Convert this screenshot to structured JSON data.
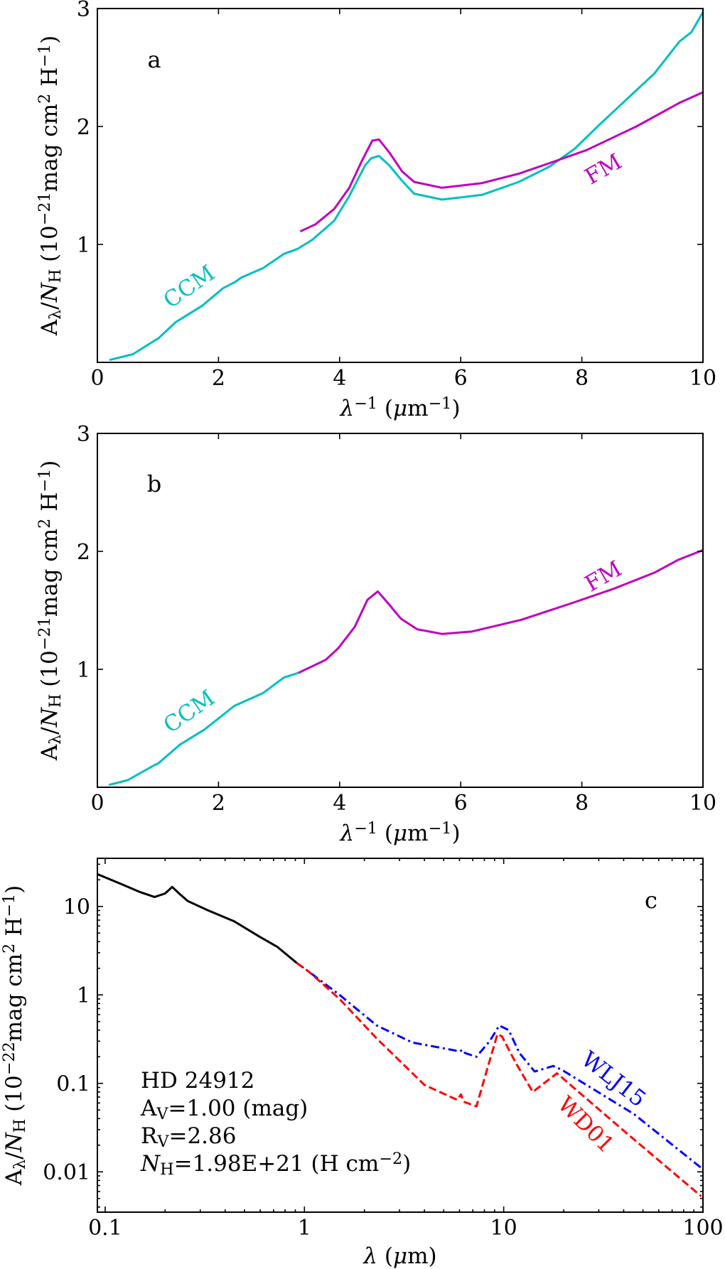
{
  "chart_data": [
    {
      "panel": "a",
      "type": "line",
      "panel_label": "a",
      "xlim": [
        0,
        10
      ],
      "ylim": [
        0,
        3
      ],
      "xticks": [
        0,
        2,
        4,
        6,
        8,
        10
      ],
      "yticks": [
        1,
        2,
        3
      ],
      "grid": false,
      "xlabel": [
        [
          "λ",
          "i"
        ],
        [
          "−1",
          "sup"
        ],
        [
          " (",
          ""
        ],
        [
          "μ",
          "i"
        ],
        [
          "m",
          ""
        ],
        [
          "−1",
          "sup"
        ],
        [
          ")",
          ""
        ]
      ],
      "ylabel": [
        [
          "A",
          ""
        ],
        [
          "λ",
          "sub"
        ],
        [
          "/",
          ""
        ],
        [
          "N",
          "i"
        ],
        [
          "H",
          "sub"
        ],
        [
          " (10",
          ""
        ],
        [
          "−21",
          "sup"
        ],
        [
          "mag cm",
          ""
        ],
        [
          "2",
          "sup"
        ],
        [
          " H",
          ""
        ],
        [
          "−1",
          "sup"
        ],
        [
          ")",
          ""
        ]
      ],
      "series": [
        {
          "name": "CCM",
          "color": "#00bfbf",
          "style": "solid",
          "x": [
            0.2,
            0.59,
            0.96,
            1.0,
            1.29,
            1.73,
            2.08,
            2.27,
            2.38,
            2.74,
            3.08,
            3.3,
            3.55,
            3.91,
            4.16,
            4.42,
            4.52,
            4.65,
            4.82,
            5.03,
            5.23,
            5.69,
            6.35,
            6.96,
            7.47,
            7.88,
            8.28,
            8.74,
            9.2,
            9.61,
            9.81,
            10.0
          ],
          "y": [
            0.02,
            0.07,
            0.19,
            0.2,
            0.34,
            0.48,
            0.63,
            0.68,
            0.72,
            0.8,
            0.92,
            0.96,
            1.04,
            1.2,
            1.41,
            1.67,
            1.73,
            1.75,
            1.67,
            1.54,
            1.43,
            1.38,
            1.42,
            1.53,
            1.66,
            1.81,
            2.01,
            2.23,
            2.45,
            2.72,
            2.8,
            2.97
          ]
        },
        {
          "name": "FM",
          "color": "#bf00bf",
          "style": "solid",
          "x": [
            3.35,
            3.6,
            3.91,
            4.16,
            4.37,
            4.54,
            4.65,
            4.82,
            5.03,
            5.23,
            5.69,
            6.35,
            6.96,
            7.47,
            8.08,
            8.9,
            9.61,
            10.0
          ],
          "y": [
            1.11,
            1.17,
            1.3,
            1.48,
            1.71,
            1.88,
            1.89,
            1.78,
            1.62,
            1.53,
            1.48,
            1.52,
            1.6,
            1.69,
            1.8,
            2.0,
            2.2,
            2.29
          ]
        }
      ]
    },
    {
      "panel": "b",
      "type": "line",
      "panel_label": "b",
      "xlim": [
        0,
        10
      ],
      "ylim": [
        0,
        3
      ],
      "xticks": [
        0,
        2,
        4,
        6,
        8,
        10
      ],
      "yticks": [
        1,
        2,
        3
      ],
      "grid": false,
      "xlabel": [
        [
          "λ",
          "i"
        ],
        [
          "−1",
          "sup"
        ],
        [
          " (",
          ""
        ],
        [
          "μ",
          "i"
        ],
        [
          "m",
          ""
        ],
        [
          "−1",
          "sup"
        ],
        [
          ")",
          ""
        ]
      ],
      "ylabel": [
        [
          "A",
          ""
        ],
        [
          "λ",
          "sub"
        ],
        [
          "/",
          ""
        ],
        [
          "N",
          "i"
        ],
        [
          "H",
          "sub"
        ],
        [
          " (10",
          ""
        ],
        [
          "−21",
          "sup"
        ],
        [
          "mag cm",
          ""
        ],
        [
          "2",
          "sup"
        ],
        [
          " H",
          ""
        ],
        [
          "−1",
          "sup"
        ],
        [
          ")",
          ""
        ]
      ],
      "series": [
        {
          "name": "CCM",
          "color": "#00bfbf",
          "style": "solid",
          "x": [
            0.19,
            0.5,
            0.95,
            1.0,
            1.36,
            1.77,
            2.26,
            2.74,
            3.08,
            3.32
          ],
          "y": [
            0.02,
            0.06,
            0.19,
            0.2,
            0.36,
            0.49,
            0.69,
            0.8,
            0.93,
            0.97
          ]
        },
        {
          "name": "FM",
          "color": "#bf00bf",
          "style": "solid",
          "x": [
            3.32,
            3.77,
            3.98,
            4.25,
            4.46,
            4.63,
            4.8,
            5.01,
            5.28,
            5.69,
            6.18,
            7.0,
            7.83,
            8.51,
            9.2,
            9.6,
            10.0
          ],
          "y": [
            0.97,
            1.08,
            1.18,
            1.36,
            1.59,
            1.66,
            1.56,
            1.43,
            1.34,
            1.3,
            1.32,
            1.42,
            1.56,
            1.68,
            1.82,
            1.93,
            2.01
          ]
        }
      ]
    },
    {
      "panel": "c",
      "type": "line",
      "panel_label": "c",
      "xscale": "log",
      "yscale": "log",
      "xlim": [
        0.0914,
        100
      ],
      "ylim": [
        0.0035,
        35
      ],
      "xticks": [
        0.1,
        1,
        10,
        100
      ],
      "xtick_labels": [
        "0.1",
        "1",
        "10",
        "100"
      ],
      "yticks": [
        0.01,
        0.1,
        1,
        10
      ],
      "ytick_labels": [
        "0.01",
        "0.1",
        "1",
        "10"
      ],
      "grid": false,
      "xlabel": [
        [
          "λ",
          "i"
        ],
        [
          " (",
          ""
        ],
        [
          "μ",
          "i"
        ],
        [
          "m)",
          ""
        ]
      ],
      "ylabel": [
        [
          "A",
          ""
        ],
        [
          "λ",
          "sub"
        ],
        [
          "/",
          ""
        ],
        [
          "N",
          "i"
        ],
        [
          "H",
          "sub"
        ],
        [
          " (10",
          ""
        ],
        [
          "−22",
          "sup"
        ],
        [
          "mag cm",
          ""
        ],
        [
          "2",
          "sup"
        ],
        [
          " H",
          ""
        ],
        [
          "−1",
          "sup"
        ],
        [
          ")",
          ""
        ]
      ],
      "annotation": [
        [
          [
            "HD 24912",
            ""
          ]
        ],
        [
          [
            "A",
            ""
          ],
          [
            "V",
            "sub"
          ],
          [
            "=1.00 (mag)",
            ""
          ]
        ],
        [
          [
            "R",
            ""
          ],
          [
            "V",
            "sub"
          ],
          [
            "=2.86",
            ""
          ]
        ],
        [
          [
            "N",
            "i"
          ],
          [
            "H",
            "sub"
          ],
          [
            "=1.98E+21 (H cm",
            ""
          ],
          [
            "−2",
            "sup"
          ],
          [
            ")",
            ""
          ]
        ]
      ],
      "series": [
        {
          "color": "#000000",
          "style": "solid",
          "x": [
            0.0914,
            0.12,
            0.15,
            0.177,
            0.2,
            0.217,
            0.235,
            0.26,
            0.322,
            0.444,
            0.59,
            0.73,
            0.914
          ],
          "y": [
            23.2,
            18.0,
            14.5,
            12.8,
            14.0,
            16.6,
            14.0,
            11.5,
            9.2,
            6.8,
            4.6,
            3.5,
            2.3
          ]
        },
        {
          "name": "WLJ15",
          "color": "#0000ff",
          "style": "dashdot",
          "x": [
            0.914,
            1.05,
            1.5,
            2.31,
            3.48,
            6.03,
            6.2,
            6.4,
            7.3,
            8.5,
            9.5,
            10.6,
            12.0,
            14.3,
            17.7,
            19.5,
            45,
            100
          ],
          "y": [
            2.3,
            1.84,
            1.0,
            0.45,
            0.29,
            0.23,
            0.24,
            0.22,
            0.2,
            0.3,
            0.45,
            0.4,
            0.22,
            0.136,
            0.157,
            0.143,
            0.045,
            0.0107
          ]
        },
        {
          "name": "WD01",
          "color": "#ff0000",
          "style": "dashed",
          "x": [
            0.914,
            1.05,
            1.5,
            2.31,
            4.0,
            5.84,
            6.1,
            6.3,
            7.3,
            8.3,
            9.3,
            9.8,
            11.5,
            14.0,
            18.5,
            40.9,
            98
          ],
          "y": [
            2.3,
            1.84,
            0.9,
            0.32,
            0.096,
            0.065,
            0.075,
            0.062,
            0.055,
            0.15,
            0.36,
            0.34,
            0.17,
            0.08,
            0.13,
            0.028,
            0.0053
          ]
        }
      ]
    }
  ]
}
